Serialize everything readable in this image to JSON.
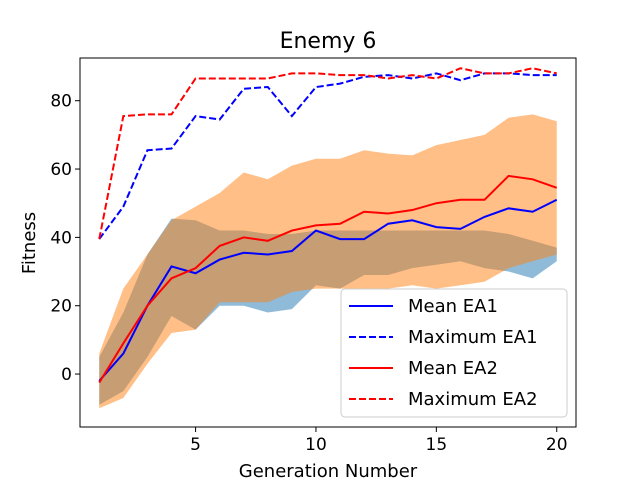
{
  "chart_data": {
    "type": "line",
    "title": "Enemy 6",
    "xlabel": "Generation Number",
    "ylabel": "Fitness",
    "xlim": [
      0.2,
      20.8
    ],
    "ylim": [
      -15.5,
      92.5
    ],
    "xticks": [
      5,
      10,
      15,
      20
    ],
    "yticks": [
      0,
      20,
      40,
      60,
      80
    ],
    "grid": false,
    "legend_position": "lower-right",
    "x": [
      1,
      2,
      3,
      4,
      5,
      6,
      7,
      8,
      9,
      10,
      11,
      12,
      13,
      14,
      15,
      16,
      17,
      18,
      19,
      20
    ],
    "bands": [
      {
        "name": "EA1 spread",
        "color": "#1f77b4",
        "opacity": 0.5,
        "upper": [
          5,
          18,
          35,
          45.5,
          45,
          42,
          42,
          41,
          41,
          42,
          42,
          42,
          42,
          42,
          42,
          42,
          42,
          41,
          39,
          37
        ],
        "lower": [
          -9,
          -5,
          5,
          17,
          13,
          20,
          20,
          18,
          19,
          26,
          25,
          29,
          29,
          31,
          32,
          33,
          31,
          30,
          28,
          33
        ]
      },
      {
        "name": "EA2 spread",
        "color": "#ff7f0e",
        "opacity": 0.5,
        "upper": [
          6,
          25,
          35,
          45,
          49,
          53,
          59,
          57,
          61,
          63,
          63,
          65.5,
          64.5,
          64,
          67,
          68.5,
          70,
          75,
          76,
          74
        ],
        "lower": [
          -10,
          -7,
          3,
          12,
          13,
          21,
          21,
          21,
          24,
          25,
          25,
          25,
          25,
          26,
          25,
          26,
          27,
          31,
          33,
          35
        ]
      }
    ],
    "series": [
      {
        "name": "Mean EA1",
        "color": "#0000ff",
        "dash": "solid",
        "values": [
          -2,
          6,
          20,
          31.5,
          29.5,
          33.5,
          35.5,
          35,
          36,
          42,
          39.5,
          39.5,
          44,
          45,
          43,
          42.5,
          46,
          48.5,
          47.5,
          51
        ]
      },
      {
        "name": "Maximum EA1",
        "color": "#0000ff",
        "dash": "dashed",
        "values": [
          39.5,
          49,
          65.5,
          66,
          75.5,
          74.5,
          83.5,
          84,
          75.5,
          84,
          85,
          87,
          87.5,
          86.5,
          88,
          86,
          88,
          88,
          87.5,
          87.5
        ]
      },
      {
        "name": "Mean EA2",
        "color": "#ff0000",
        "dash": "solid",
        "values": [
          -2.5,
          9,
          20,
          28,
          31,
          37.5,
          40,
          39,
          42,
          43.5,
          44,
          47.5,
          47,
          48,
          50,
          51,
          51,
          58,
          57,
          54.5
        ]
      },
      {
        "name": "Maximum EA2",
        "color": "#ff0000",
        "dash": "dashed",
        "values": [
          39.5,
          75.5,
          76,
          76,
          86.5,
          86.5,
          86.5,
          86.5,
          88,
          88,
          87.5,
          87.5,
          86.5,
          87.5,
          86.5,
          89.5,
          88,
          88,
          89.5,
          88
        ]
      }
    ]
  }
}
